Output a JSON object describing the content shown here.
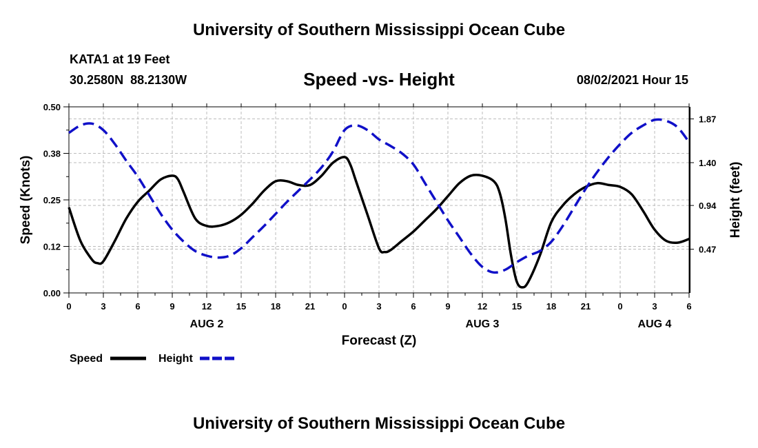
{
  "header": {
    "title": "University of Southern Mississippi Ocean Cube",
    "station": "KATA1 at 19 Feet",
    "coords": "30.2580N  88.2130W",
    "datetime": "08/02/2021 Hour 15",
    "footer_title": "University of Southern Mississippi Ocean Cube"
  },
  "colors": {
    "speed": "#000000",
    "height": "#1010c8",
    "grid": "#bbbbbb"
  },
  "chart_data": {
    "type": "line",
    "title": "Speed -vs- Height",
    "xlabel": "Forecast (Z)",
    "ylabel": "Speed (Knots)",
    "y2label": "Height (feet)",
    "xlim": [
      0,
      54
    ],
    "ylim": [
      0,
      0.5
    ],
    "y2lim": [
      0,
      2.0
    ],
    "grid": true,
    "legend_position": "bottom-left",
    "x_ticks": [
      0,
      3,
      6,
      9,
      12,
      15,
      18,
      21,
      24,
      27,
      30,
      33,
      36,
      39,
      42,
      45,
      48,
      51,
      54
    ],
    "x_tick_labels": [
      "0",
      "3",
      "6",
      "9",
      "12",
      "15",
      "18",
      "21",
      "0",
      "3",
      "6",
      "9",
      "12",
      "15",
      "18",
      "21",
      "0",
      "3",
      "6"
    ],
    "date_labels": [
      {
        "x": 12,
        "label": "AUG 2"
      },
      {
        "x": 36,
        "label": "AUG 3"
      },
      {
        "x": 51,
        "label": "AUG 4"
      }
    ],
    "y_ticks": [
      0,
      0.125,
      0.25,
      0.375,
      0.5
    ],
    "y_tick_labels": [
      "0.00",
      "0.12",
      "0.25",
      "0.38",
      "0.50"
    ],
    "y2_ticks": [
      0.47,
      0.94,
      1.4,
      1.87
    ],
    "y2_tick_labels": [
      "0.47",
      "0.94",
      "1.40",
      "1.87"
    ],
    "series": [
      {
        "name": "Speed",
        "axis": "left",
        "style": "solid",
        "x": [
          0,
          1,
          2,
          2.5,
          3,
          4,
          5,
          6,
          7,
          8,
          9,
          9.5,
          10,
          11,
          12,
          13,
          14,
          15,
          16,
          17,
          18,
          19,
          20,
          21,
          22,
          23,
          24,
          24.5,
          25,
          26,
          27,
          27.5,
          28,
          29,
          30,
          31,
          32,
          33,
          34,
          35,
          36,
          37,
          37.5,
          38,
          38.5,
          39,
          39.5,
          40,
          41,
          42,
          43,
          44,
          45,
          46,
          47,
          48,
          49,
          50,
          51,
          52,
          53,
          54
        ],
        "values": [
          0.23,
          0.14,
          0.09,
          0.08,
          0.085,
          0.14,
          0.2,
          0.245,
          0.275,
          0.305,
          0.315,
          0.305,
          0.27,
          0.2,
          0.18,
          0.18,
          0.19,
          0.21,
          0.24,
          0.275,
          0.3,
          0.3,
          0.29,
          0.29,
          0.315,
          0.35,
          0.365,
          0.345,
          0.3,
          0.21,
          0.12,
          0.11,
          0.115,
          0.14,
          0.165,
          0.195,
          0.225,
          0.26,
          0.295,
          0.315,
          0.315,
          0.3,
          0.27,
          0.2,
          0.1,
          0.03,
          0.015,
          0.03,
          0.1,
          0.19,
          0.235,
          0.265,
          0.285,
          0.295,
          0.29,
          0.285,
          0.265,
          0.22,
          0.17,
          0.14,
          0.135,
          0.145
        ]
      },
      {
        "name": "Height",
        "axis": "right",
        "style": "dashed",
        "x": [
          0,
          1,
          2,
          3,
          4,
          5,
          6,
          7,
          8,
          9,
          10,
          11,
          12,
          13,
          14,
          15,
          16,
          17,
          18,
          19,
          20,
          21,
          22,
          23,
          24,
          25,
          26,
          27,
          28,
          29,
          30,
          31,
          32,
          33,
          34,
          35,
          36,
          37,
          38,
          39,
          40,
          41,
          42,
          43,
          44,
          45,
          46,
          47,
          48,
          49,
          50,
          51,
          52,
          53,
          54
        ],
        "values": [
          1.72,
          1.8,
          1.82,
          1.75,
          1.6,
          1.42,
          1.25,
          1.05,
          0.85,
          0.68,
          0.55,
          0.45,
          0.4,
          0.38,
          0.4,
          0.48,
          0.6,
          0.72,
          0.85,
          0.98,
          1.1,
          1.22,
          1.35,
          1.52,
          1.75,
          1.8,
          1.75,
          1.65,
          1.58,
          1.5,
          1.38,
          1.18,
          0.98,
          0.78,
          0.6,
          0.42,
          0.28,
          0.22,
          0.25,
          0.33,
          0.4,
          0.45,
          0.55,
          0.72,
          0.92,
          1.12,
          1.3,
          1.46,
          1.6,
          1.72,
          1.8,
          1.86,
          1.85,
          1.78,
          1.62
        ]
      }
    ],
    "legend": [
      {
        "label": "Speed"
      },
      {
        "label": "Height"
      }
    ]
  }
}
